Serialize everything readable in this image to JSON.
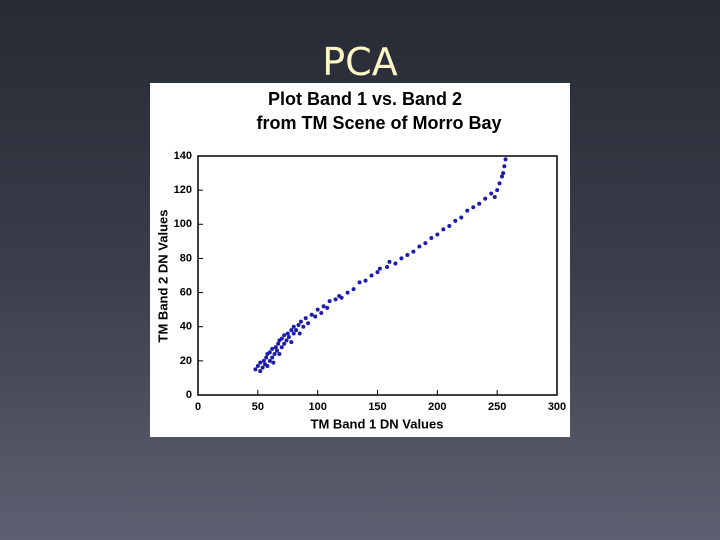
{
  "slide": {
    "title": "PCA"
  },
  "chart_data": {
    "type": "scatter",
    "title": "Plot Band 1 vs. Band 2",
    "subtitle": "from TM Scene of Morro Bay",
    "x_label": "TM Band 1 DN Values",
    "y_label": "TM Band 2 DN Values",
    "xlim": [
      0,
      300
    ],
    "xticks": [
      0,
      50,
      100,
      150,
      200,
      250,
      300
    ],
    "ylim": [
      0,
      140
    ],
    "yticks": [
      0,
      20,
      40,
      60,
      80,
      100,
      120,
      140
    ],
    "color": "#1c1ca8",
    "x": [
      48,
      50,
      52,
      52,
      54,
      55,
      56,
      57,
      58,
      58,
      60,
      60,
      62,
      62,
      63,
      64,
      65,
      66,
      67,
      68,
      68,
      70,
      70,
      72,
      72,
      74,
      75,
      76,
      78,
      78,
      80,
      80,
      82,
      84,
      85,
      86,
      88,
      90,
      92,
      95,
      98,
      100,
      103,
      105,
      108,
      110,
      115,
      118,
      120,
      125,
      130,
      135,
      140,
      145,
      150,
      152,
      158,
      160,
      165,
      170,
      175,
      180,
      185,
      190,
      195,
      200,
      205,
      210,
      215,
      220,
      225,
      230,
      235,
      240,
      245,
      248,
      250,
      252,
      254,
      255,
      256,
      257
    ],
    "y": [
      15,
      17,
      14,
      19,
      16,
      20,
      18,
      22,
      17,
      24,
      20,
      25,
      22,
      27,
      19,
      24,
      28,
      26,
      30,
      24,
      32,
      28,
      33,
      30,
      35,
      32,
      36,
      34,
      38,
      31,
      36,
      40,
      38,
      41,
      36,
      43,
      40,
      45,
      42,
      47,
      46,
      50,
      48,
      52,
      51,
      55,
      56,
      58,
      57,
      60,
      62,
      66,
      67,
      70,
      72,
      74,
      75,
      78,
      77,
      80,
      82,
      84,
      87,
      89,
      92,
      94,
      97,
      99,
      102,
      104,
      108,
      110,
      112,
      115,
      118,
      116,
      120,
      124,
      128,
      130,
      134,
      138
    ]
  }
}
